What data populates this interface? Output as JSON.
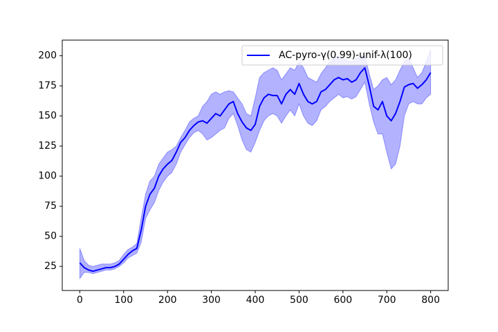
{
  "chart_data": {
    "type": "line",
    "title": "",
    "xlabel": "",
    "ylabel": "",
    "xlim": [
      -40,
      840
    ],
    "ylim": [
      5,
      213
    ],
    "x_ticks": [
      0,
      100,
      200,
      300,
      400,
      500,
      600,
      700,
      800
    ],
    "y_ticks": [
      25,
      50,
      75,
      100,
      125,
      150,
      175,
      200
    ],
    "legend": {
      "placement": "top-right",
      "entries": [
        "AC-pyro-γ(0.99)-unif-λ(100)"
      ]
    },
    "grid": false,
    "series": [
      {
        "name": "AC-pyro-γ(0.99)-unif-λ(100)",
        "color": "#0000ff",
        "band_color": "#0000ff",
        "band_opacity": 0.3,
        "x": [
          0,
          10,
          20,
          30,
          40,
          50,
          60,
          70,
          80,
          90,
          100,
          110,
          120,
          130,
          140,
          150,
          160,
          170,
          180,
          190,
          200,
          210,
          220,
          230,
          240,
          250,
          260,
          270,
          280,
          290,
          300,
          310,
          320,
          330,
          340,
          350,
          360,
          370,
          380,
          390,
          400,
          410,
          420,
          430,
          440,
          450,
          460,
          470,
          480,
          490,
          500,
          510,
          520,
          530,
          540,
          550,
          560,
          570,
          580,
          590,
          600,
          610,
          620,
          630,
          640,
          650,
          660,
          670,
          680,
          690,
          700,
          710,
          720,
          730,
          740,
          750,
          760,
          770,
          780,
          790,
          800
        ],
        "mean": [
          28,
          24,
          22,
          21,
          22,
          23,
          24,
          24,
          25,
          27,
          31,
          35,
          38,
          40,
          55,
          75,
          85,
          90,
          100,
          106,
          110,
          113,
          120,
          128,
          132,
          138,
          142,
          145,
          146,
          144,
          148,
          152,
          150,
          155,
          160,
          162,
          152,
          145,
          140,
          138,
          143,
          158,
          165,
          168,
          167,
          167,
          160,
          168,
          172,
          168,
          177,
          168,
          162,
          160,
          162,
          170,
          172,
          176,
          180,
          182,
          180,
          181,
          178,
          180,
          186,
          190,
          175,
          158,
          155,
          162,
          150,
          146,
          152,
          162,
          174,
          176,
          177,
          173,
          176,
          180,
          186
        ],
        "upper": [
          40,
          30,
          26,
          25,
          26,
          27,
          27,
          27,
          28,
          30,
          35,
          39,
          41,
          44,
          65,
          85,
          96,
          100,
          110,
          115,
          120,
          122,
          125,
          132,
          138,
          145,
          148,
          150,
          158,
          162,
          168,
          170,
          168,
          170,
          171,
          170,
          165,
          160,
          152,
          150,
          165,
          182,
          186,
          188,
          190,
          188,
          180,
          185,
          190,
          188,
          195,
          190,
          182,
          180,
          178,
          185,
          190,
          195,
          198,
          200,
          198,
          196,
          195,
          197,
          200,
          200,
          185,
          172,
          175,
          180,
          182,
          176,
          180,
          188,
          195,
          198,
          190,
          182,
          186,
          195,
          205
        ],
        "lower": [
          15,
          20,
          20,
          19,
          20,
          21,
          22,
          22,
          23,
          25,
          28,
          32,
          34,
          36,
          45,
          65,
          72,
          78,
          88,
          95,
          100,
          103,
          110,
          120,
          126,
          132,
          136,
          138,
          135,
          130,
          132,
          135,
          138,
          140,
          148,
          152,
          142,
          130,
          122,
          120,
          128,
          138,
          146,
          150,
          152,
          150,
          144,
          150,
          155,
          150,
          160,
          150,
          144,
          142,
          146,
          155,
          158,
          162,
          165,
          168,
          165,
          166,
          164,
          166,
          172,
          178,
          160,
          145,
          135,
          135,
          120,
          106,
          110,
          125,
          150,
          160,
          162,
          160,
          160,
          165,
          168
        ]
      }
    ]
  }
}
